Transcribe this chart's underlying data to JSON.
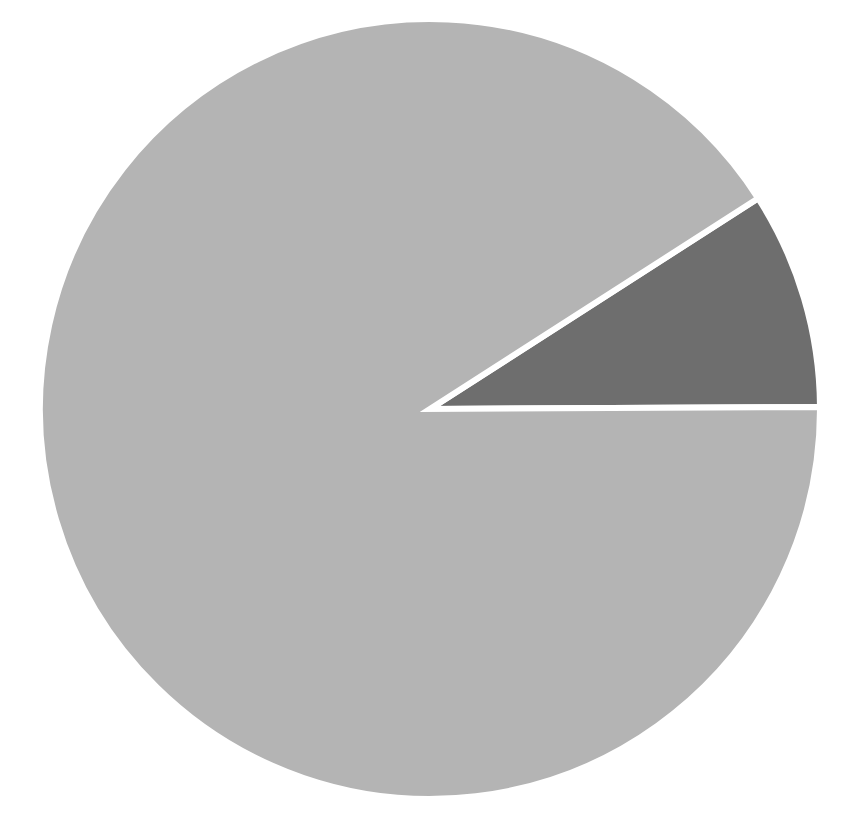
{
  "chart_data": {
    "type": "pie",
    "categories": [
      null,
      null
    ],
    "values": [
      9,
      91
    ],
    "colors": [
      "#6e6e6e",
      "#b4b4b4"
    ],
    "legend": false
  }
}
